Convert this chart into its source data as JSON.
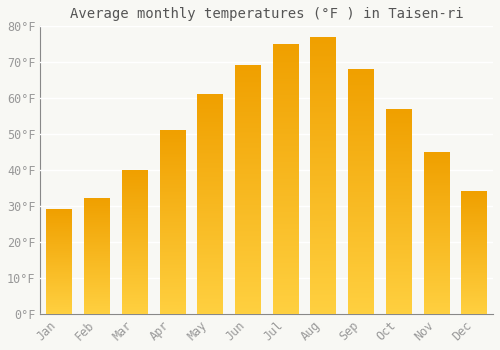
{
  "title": "Average monthly temperatures (°F ) in Taisen-ri",
  "months": [
    "Jan",
    "Feb",
    "Mar",
    "Apr",
    "May",
    "Jun",
    "Jul",
    "Aug",
    "Sep",
    "Oct",
    "Nov",
    "Dec"
  ],
  "values": [
    29,
    32,
    40,
    51,
    61,
    69,
    75,
    77,
    68,
    57,
    45,
    34
  ],
  "bar_color_top": "#F0A000",
  "bar_color_bottom": "#FFD040",
  "background_color": "#F8F8F4",
  "plot_bg_color": "#F8F8F4",
  "grid_color": "#FFFFFF",
  "ylim": [
    0,
    80
  ],
  "yticks": [
    0,
    10,
    20,
    30,
    40,
    50,
    60,
    70,
    80
  ],
  "ytick_labels": [
    "0°F",
    "10°F",
    "20°F",
    "30°F",
    "40°F",
    "50°F",
    "60°F",
    "70°F",
    "80°F"
  ],
  "title_fontsize": 10,
  "tick_fontsize": 8.5,
  "font_family": "monospace",
  "bar_width": 0.68,
  "figsize": [
    5.0,
    3.5
  ],
  "dpi": 100
}
